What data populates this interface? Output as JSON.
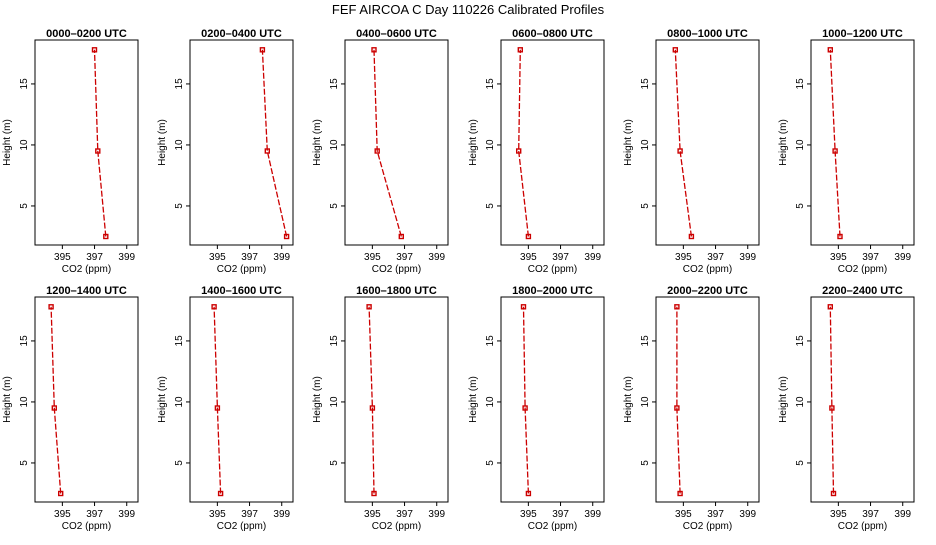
{
  "chart_data": {
    "title": "FEF AIRCOA C  Day 110226  Calibrated Profiles",
    "type": "line",
    "series_color": "#cc0000",
    "xlabel": "CO2 (ppm)",
    "ylabel": "Height (m)",
    "xlim": [
      393.3,
      399.7
    ],
    "ylim": [
      1.8,
      18.6
    ],
    "xticks": [
      395,
      397,
      399
    ],
    "yticks": [
      5,
      10,
      15
    ],
    "heights": [
      2.5,
      9.5,
      17.8
    ],
    "panels": [
      {
        "title": "0000–0200 UTC",
        "co2": [
          397.7,
          397.2,
          397.0
        ]
      },
      {
        "title": "0200–0400 UTC",
        "co2": [
          399.3,
          398.1,
          397.8
        ]
      },
      {
        "title": "0400–0600 UTC",
        "co2": [
          396.8,
          395.3,
          395.1
        ]
      },
      {
        "title": "0600–0800 UTC",
        "co2": [
          395.0,
          394.4,
          394.5
        ]
      },
      {
        "title": "0800–1000 UTC",
        "co2": [
          395.5,
          394.8,
          394.5
        ]
      },
      {
        "title": "1000–1200 UTC",
        "co2": [
          395.1,
          394.8,
          394.5
        ]
      },
      {
        "title": "1200–1400 UTC",
        "co2": [
          394.9,
          394.5,
          394.3
        ]
      },
      {
        "title": "1400–1600 UTC",
        "co2": [
          395.2,
          395.0,
          394.8
        ]
      },
      {
        "title": "1600–1800 UTC",
        "co2": [
          395.1,
          395.0,
          394.8
        ]
      },
      {
        "title": "1800–2000 UTC",
        "co2": [
          395.0,
          394.8,
          394.7
        ]
      },
      {
        "title": "2000–2200 UTC",
        "co2": [
          394.8,
          394.6,
          394.6
        ]
      },
      {
        "title": "2200–2400 UTC",
        "co2": [
          394.7,
          394.6,
          394.5
        ]
      }
    ]
  }
}
